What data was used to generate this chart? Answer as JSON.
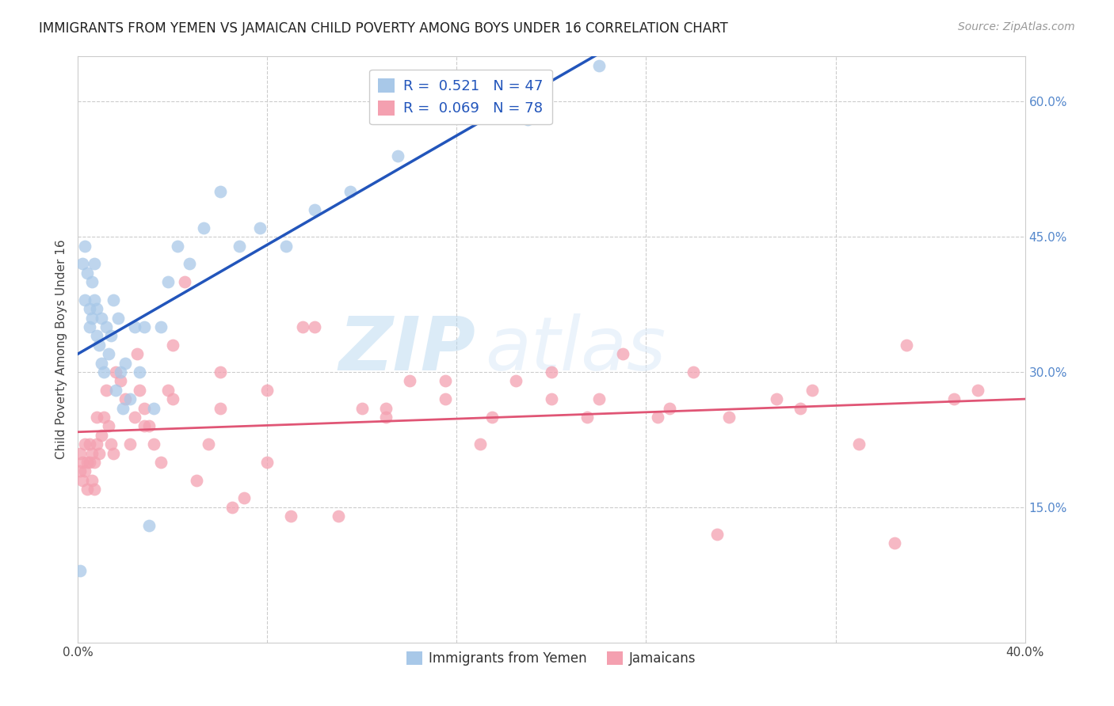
{
  "title": "IMMIGRANTS FROM YEMEN VS JAMAICAN CHILD POVERTY AMONG BOYS UNDER 16 CORRELATION CHART",
  "source": "Source: ZipAtlas.com",
  "ylabel": "Child Poverty Among Boys Under 16",
  "xlim": [
    0.0,
    0.4
  ],
  "ylim": [
    0.0,
    0.65
  ],
  "blue_R": 0.521,
  "blue_N": 47,
  "pink_R": 0.069,
  "pink_N": 78,
  "blue_color": "#A8C8E8",
  "pink_color": "#F4A0B0",
  "blue_line_color": "#2255BB",
  "pink_line_color": "#E05575",
  "watermark": "ZIPatlas",
  "blue_scatter_x": [
    0.001,
    0.002,
    0.003,
    0.003,
    0.004,
    0.005,
    0.005,
    0.006,
    0.006,
    0.007,
    0.007,
    0.008,
    0.008,
    0.009,
    0.01,
    0.01,
    0.011,
    0.012,
    0.013,
    0.014,
    0.015,
    0.016,
    0.017,
    0.018,
    0.019,
    0.02,
    0.022,
    0.024,
    0.026,
    0.028,
    0.03,
    0.032,
    0.035,
    0.038,
    0.042,
    0.047,
    0.053,
    0.06,
    0.068,
    0.077,
    0.088,
    0.1,
    0.115,
    0.135,
    0.16,
    0.19,
    0.22
  ],
  "blue_scatter_y": [
    0.08,
    0.42,
    0.44,
    0.38,
    0.41,
    0.37,
    0.35,
    0.4,
    0.36,
    0.42,
    0.38,
    0.37,
    0.34,
    0.33,
    0.36,
    0.31,
    0.3,
    0.35,
    0.32,
    0.34,
    0.38,
    0.28,
    0.36,
    0.3,
    0.26,
    0.31,
    0.27,
    0.35,
    0.3,
    0.35,
    0.13,
    0.26,
    0.35,
    0.4,
    0.44,
    0.42,
    0.46,
    0.5,
    0.44,
    0.46,
    0.44,
    0.48,
    0.5,
    0.54,
    0.6,
    0.58,
    0.64
  ],
  "pink_scatter_x": [
    0.001,
    0.001,
    0.002,
    0.002,
    0.003,
    0.003,
    0.004,
    0.004,
    0.005,
    0.005,
    0.006,
    0.006,
    0.007,
    0.007,
    0.008,
    0.008,
    0.009,
    0.01,
    0.011,
    0.012,
    0.013,
    0.014,
    0.015,
    0.016,
    0.018,
    0.02,
    0.022,
    0.024,
    0.026,
    0.028,
    0.03,
    0.032,
    0.035,
    0.038,
    0.04,
    0.045,
    0.05,
    0.055,
    0.06,
    0.065,
    0.07,
    0.08,
    0.09,
    0.1,
    0.11,
    0.12,
    0.13,
    0.14,
    0.155,
    0.17,
    0.185,
    0.2,
    0.215,
    0.23,
    0.245,
    0.26,
    0.275,
    0.295,
    0.31,
    0.33,
    0.35,
    0.37,
    0.04,
    0.025,
    0.028,
    0.06,
    0.08,
    0.095,
    0.13,
    0.155,
    0.175,
    0.2,
    0.22,
    0.25,
    0.27,
    0.305,
    0.345,
    0.38
  ],
  "pink_scatter_y": [
    0.21,
    0.19,
    0.2,
    0.18,
    0.22,
    0.19,
    0.2,
    0.17,
    0.22,
    0.2,
    0.18,
    0.21,
    0.2,
    0.17,
    0.25,
    0.22,
    0.21,
    0.23,
    0.25,
    0.28,
    0.24,
    0.22,
    0.21,
    0.3,
    0.29,
    0.27,
    0.22,
    0.25,
    0.28,
    0.24,
    0.24,
    0.22,
    0.2,
    0.28,
    0.27,
    0.4,
    0.18,
    0.22,
    0.26,
    0.15,
    0.16,
    0.2,
    0.14,
    0.35,
    0.14,
    0.26,
    0.25,
    0.29,
    0.27,
    0.22,
    0.29,
    0.3,
    0.25,
    0.32,
    0.25,
    0.3,
    0.25,
    0.27,
    0.28,
    0.22,
    0.33,
    0.27,
    0.33,
    0.32,
    0.26,
    0.3,
    0.28,
    0.35,
    0.26,
    0.29,
    0.25,
    0.27,
    0.27,
    0.26,
    0.12,
    0.26,
    0.11,
    0.28
  ]
}
